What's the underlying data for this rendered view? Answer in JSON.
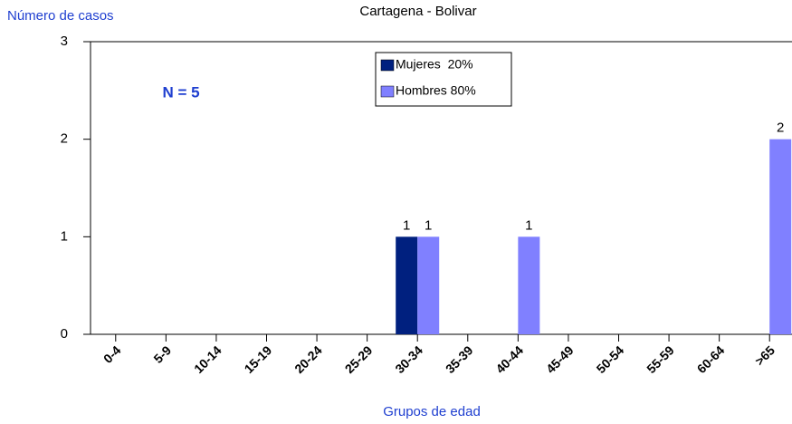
{
  "chart_data": {
    "type": "bar",
    "title": "Cartagena - Bolivar",
    "y_label": "Número de casos",
    "x_label": "Grupos de edad",
    "annotation": "N = 5",
    "categories": [
      "0-4",
      "5-9",
      "10-14",
      "15-19",
      "20-24",
      "25-29",
      "30-34",
      "35-39",
      "40-44",
      "45-49",
      "50-54",
      "55-59",
      "60-64",
      ">65"
    ],
    "series": [
      {
        "name": "Mujeres  20%",
        "color": "#00207f",
        "values": [
          0,
          0,
          0,
          0,
          0,
          0,
          1,
          0,
          0,
          0,
          0,
          0,
          0,
          0
        ]
      },
      {
        "name": "Hombres 80%",
        "color": "#8080ff",
        "values": [
          0,
          0,
          0,
          0,
          0,
          0,
          1,
          0,
          1,
          0,
          0,
          0,
          0,
          2
        ]
      }
    ],
    "ylim": [
      0,
      3
    ],
    "yticks": [
      0,
      1,
      2,
      3
    ],
    "grid": false,
    "legend": "top"
  }
}
